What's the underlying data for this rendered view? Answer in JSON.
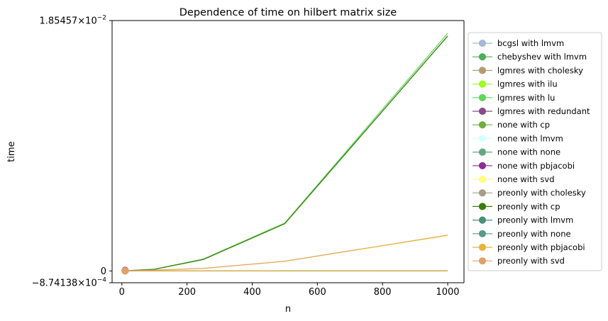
{
  "chart_data": {
    "type": "line",
    "title": "Dependence of time on hilbert matrix size",
    "xlabel": "n",
    "ylabel": "time",
    "xlim": [
      -30,
      1050
    ],
    "ylim": [
      -0.000874138,
      0.0185457
    ],
    "x_ticks": [
      0,
      200,
      400,
      600,
      800,
      1000
    ],
    "y_ticks": [
      {
        "value": -0.000874138,
        "mantissa": "−8.74138",
        "base": "×10",
        "exp": "−4"
      },
      {
        "value": 0,
        "mantissa": "0",
        "base": "",
        "exp": ""
      },
      {
        "value": 0.0185457,
        "mantissa": "1.85457",
        "base": "×10",
        "exp": "−2"
      }
    ],
    "legend_position": "outside-right",
    "grid": false,
    "series": [
      {
        "name": "bcgsl with lmvm",
        "color": "#a3b9d3",
        "x": [
          10
        ],
        "y": [
          2e-05
        ]
      },
      {
        "name": "chebyshev with lmvm",
        "color": "#4fae55",
        "x": [
          10,
          100,
          250,
          500,
          1000
        ],
        "y": [
          1e-05,
          0.00012,
          0.00085,
          0.0035,
          0.0174
        ]
      },
      {
        "name": "lgmres with cholesky",
        "color": "#b59a6f",
        "x": [
          10,
          100,
          250,
          500,
          1000
        ],
        "y": [
          5e-06,
          6e-06,
          6e-06,
          7e-06,
          8e-06
        ]
      },
      {
        "name": "lgmres with ilu",
        "color": "#99ff1f",
        "x": [
          10
        ],
        "y": [
          5e-06
        ]
      },
      {
        "name": "lgmres with lu",
        "color": "#5fd659",
        "x": [
          10,
          100,
          250,
          500,
          1000
        ],
        "y": [
          1e-05,
          0.00013,
          0.00088,
          0.00355,
          0.0176
        ]
      },
      {
        "name": "lgmres with redundant",
        "color": "#8a4a86",
        "x": [
          10
        ],
        "y": [
          5e-05
        ]
      },
      {
        "name": "none with cp",
        "color": "#6fae3f",
        "x": [
          10
        ],
        "y": [
          1e-05
        ]
      },
      {
        "name": "none with lmvm",
        "color": "#d4ffff",
        "x": [
          10
        ],
        "y": [
          5e-06
        ]
      },
      {
        "name": "none with none",
        "color": "#65a87e",
        "x": [
          10,
          500,
          1000
        ],
        "y": [
          5e-06,
          7e-06,
          1e-05
        ]
      },
      {
        "name": "none with pbjacobi",
        "color": "#8e2d95",
        "x": [
          10
        ],
        "y": [
          3e-05
        ]
      },
      {
        "name": "none with svd",
        "color": "#ffff80",
        "x": [
          10,
          100,
          250,
          500,
          1000
        ],
        "y": [
          5e-06,
          4e-05,
          0.00018,
          0.0007,
          0.0026
        ]
      },
      {
        "name": "preonly with cholesky",
        "color": "#a59e8a",
        "x": [
          10,
          100,
          250,
          500,
          1000
        ],
        "y": [
          5e-06,
          5e-06,
          6e-06,
          6e-06,
          7e-06
        ]
      },
      {
        "name": "preonly with cp",
        "color": "#3a7d0b",
        "x": [
          10,
          100,
          250,
          500,
          1000
        ],
        "y": [
          1e-05,
          0.00012,
          0.00085,
          0.0035,
          0.0174
        ]
      },
      {
        "name": "preonly with lmvm",
        "color": "#4a8e7e",
        "x": [
          10,
          500,
          1000
        ],
        "y": [
          5e-06,
          8e-06,
          1.1e-05
        ]
      },
      {
        "name": "preonly with none",
        "color": "#5b9a8c",
        "x": [
          10,
          500,
          1000
        ],
        "y": [
          5e-06,
          8e-06,
          1.1e-05
        ]
      },
      {
        "name": "preonly with pbjacobi",
        "color": "#e8b23c",
        "x": [
          10,
          100,
          250,
          500,
          1000
        ],
        "y": [
          5e-06,
          5e-06,
          6e-06,
          7e-06,
          8e-06
        ]
      },
      {
        "name": "preonly with svd",
        "color": "#e0a16a",
        "x": [
          10,
          100,
          250,
          500,
          1000
        ],
        "y": [
          1e-05,
          6e-05,
          0.00019,
          0.00072,
          0.00265
        ]
      }
    ]
  }
}
